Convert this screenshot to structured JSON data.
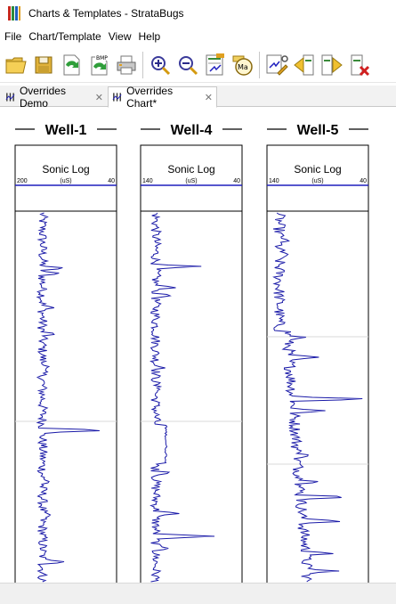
{
  "window": {
    "title": "Charts & Templates - StrataBugs"
  },
  "menu": {
    "items": [
      {
        "label": "File"
      },
      {
        "label": "Chart/Template"
      },
      {
        "label": "View"
      },
      {
        "label": "Help"
      }
    ]
  },
  "toolbar": {
    "buttons": [
      {
        "icon": "open-folder-icon"
      },
      {
        "icon": "save-icon"
      },
      {
        "icon": "export-icon"
      },
      {
        "icon": "export-bmp-icon"
      },
      {
        "icon": "print-icon"
      },
      {
        "icon": "zoom-in-icon"
      },
      {
        "icon": "zoom-out-icon"
      },
      {
        "icon": "scale-icon"
      },
      {
        "icon": "measure-icon"
      },
      {
        "icon": "edit-template-icon"
      },
      {
        "icon": "move-left-icon"
      },
      {
        "icon": "move-right-icon"
      },
      {
        "icon": "delete-column-icon"
      }
    ],
    "bmp_label": "BMP",
    "ma_label": "Ma"
  },
  "tabs": [
    {
      "label": "Overrides Demo",
      "active": false
    },
    {
      "label": "Overrides Chart*",
      "active": true
    }
  ],
  "wells": [
    {
      "name": "Well-1",
      "log_name": "Sonic Log",
      "unit": "(uS)",
      "scale_left": "200",
      "scale_right": "40"
    },
    {
      "name": "Well-4",
      "log_name": "Sonic Log",
      "unit": "(uS)",
      "scale_left": "140",
      "scale_right": "40"
    },
    {
      "name": "Well-5",
      "log_name": "Sonic Log",
      "unit": "(uS)",
      "scale_left": "140",
      "scale_right": "40"
    }
  ],
  "colors": {
    "curve": "#1a1aa8",
    "scale_line": "#1e1ebe",
    "track_border": "#000000"
  }
}
